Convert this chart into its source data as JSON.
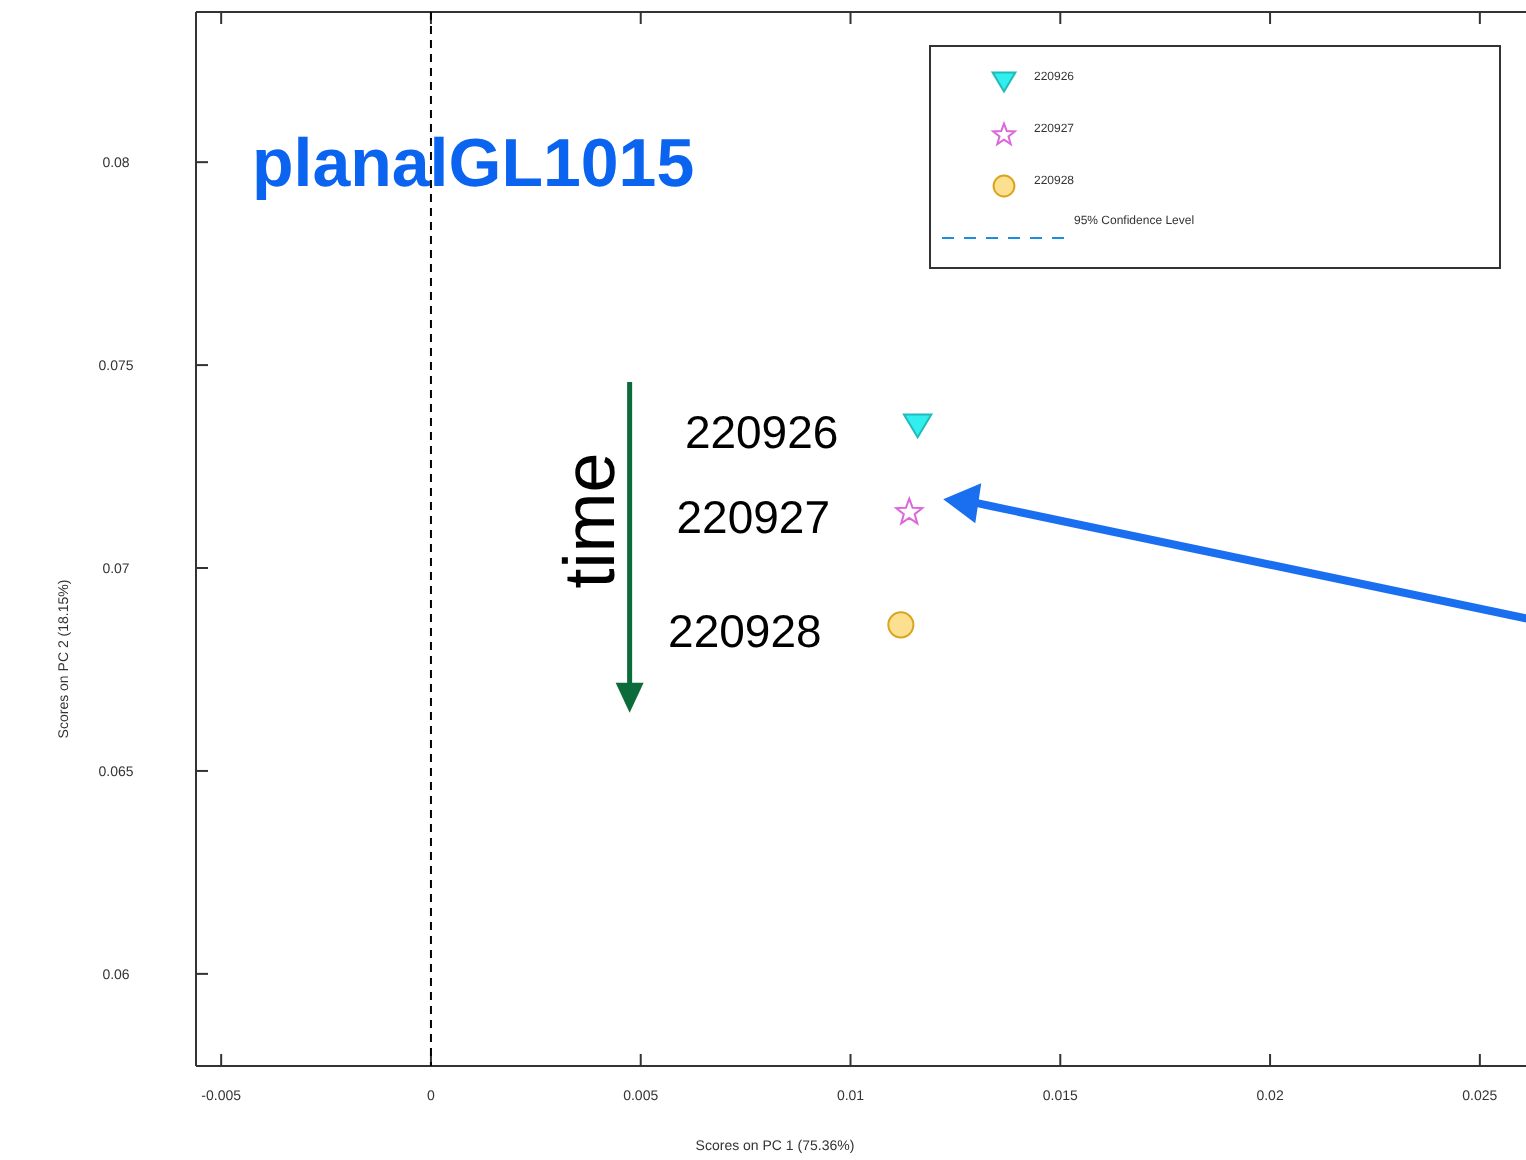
{
  "chart_data": {
    "type": "scatter",
    "title": "planalGL1015",
    "xlabel": "Scores on PC 1 (75.36%)",
    "ylabel": "Scores on PC 2 (18.15%)",
    "xlim": [
      -0.0056,
      0.0261
    ],
    "ylim": [
      0.05773,
      0.0837
    ],
    "xticks": [
      -0.005,
      0,
      0.005,
      0.01,
      0.015,
      0.02,
      0.025
    ],
    "yticks": [
      0.06,
      0.065,
      0.07,
      0.075,
      0.08
    ],
    "series": [
      {
        "name": "220926",
        "color": "#33eeee",
        "marker": "triangle",
        "x": [
          0.0116
        ],
        "values": [
          0.0735
        ]
      },
      {
        "name": "220927",
        "color": "#dd66dd",
        "marker": "star",
        "x": [
          0.0114
        ],
        "values": [
          0.0714
        ]
      },
      {
        "name": "220928",
        "color": "#fde08f",
        "marker": "circle",
        "x": [
          0.0112
        ],
        "values": [
          0.0686
        ]
      }
    ],
    "ref_lines": [
      {
        "axis": "x",
        "value": 0,
        "color": "#000000",
        "line_style": "dashed"
      }
    ],
    "annotations": [
      "220926",
      "220927",
      "220928",
      "time",
      "95% Confidence Level"
    ],
    "legend": "top right",
    "grid": false
  }
}
